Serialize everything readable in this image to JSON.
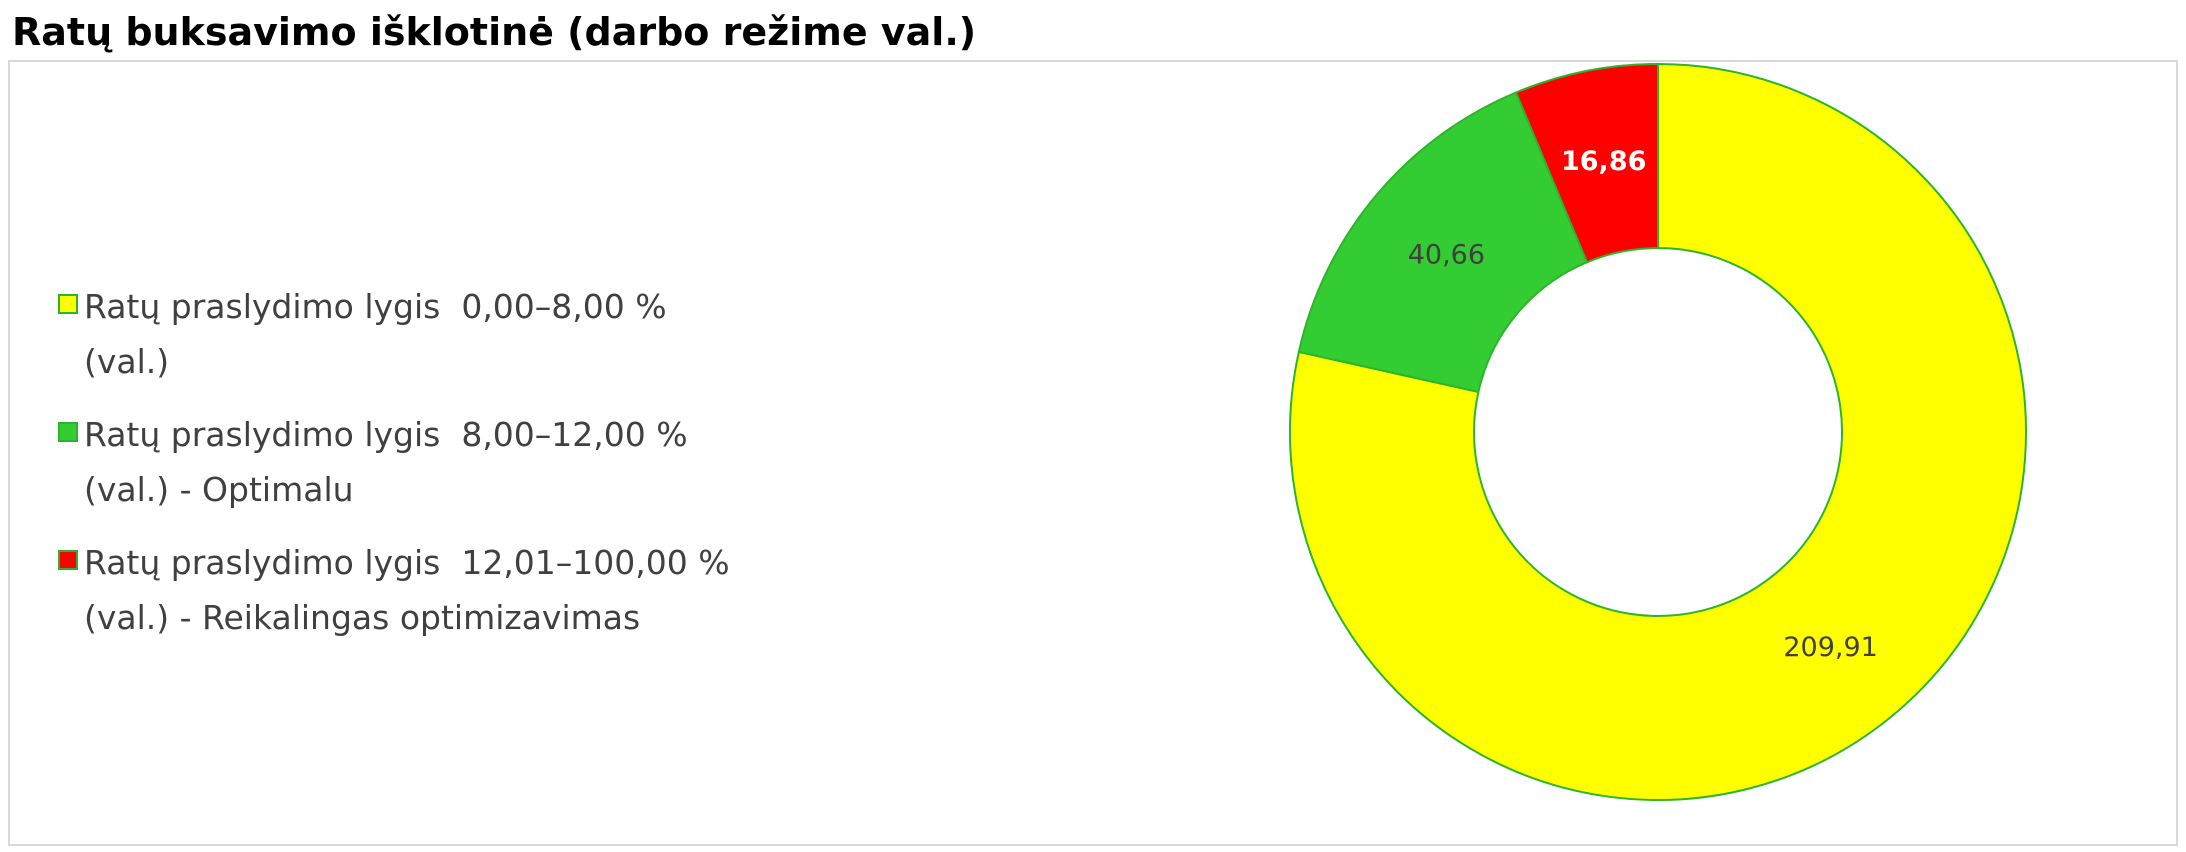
{
  "title": "Ratų buksavimo išklotinė (darbo režime val.)",
  "chart_data": {
    "type": "pie",
    "variant": "donut",
    "title": "Ratų buksavimo išklotinė (darbo režime val.)",
    "legend_position": "left",
    "slices": [
      {
        "label_lines": [
          "Ratų praslydimo lygis  0,00–8,00 %",
          "(val.)"
        ],
        "value": 209.91,
        "value_label": "209,91",
        "color": "#ffff00",
        "label_color": "#404040",
        "label_bold": false
      },
      {
        "label_lines": [
          "Ratų praslydimo lygis  8,00–12,00 %",
          "(val.) - Optimalu"
        ],
        "value": 40.66,
        "value_label": "40,66",
        "color": "#33cc33",
        "label_color": "#404040",
        "label_bold": false
      },
      {
        "label_lines": [
          "Ratų praslydimo lygis  12,01–100,00 %",
          "(val.) - Reikalingas optimizavimas"
        ],
        "value": 16.86,
        "value_label": "16,86",
        "color": "#ff0000",
        "label_color": "#ffffff",
        "label_bold": true
      }
    ],
    "slice_border_color": "#2bb52b"
  }
}
